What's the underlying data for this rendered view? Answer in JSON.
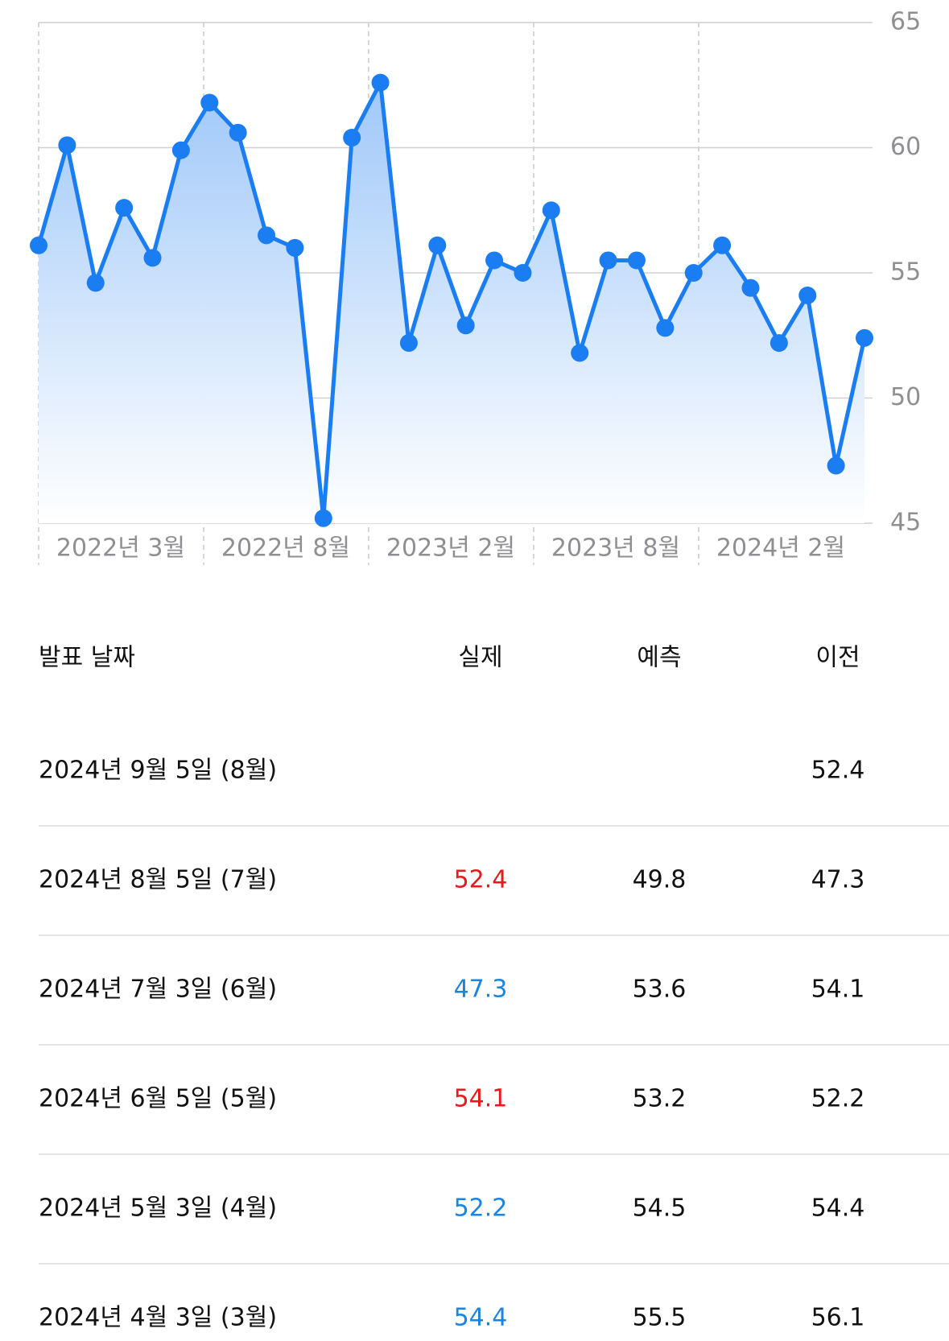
{
  "chart_data": {
    "type": "line",
    "x_tick_labels": [
      "2022년 3월",
      "2022년 8월",
      "2023년 2월",
      "2023년 8월",
      "2024년 2월"
    ],
    "series": [
      {
        "color": "#1a7df2",
        "values": [
          56.1,
          60.1,
          54.6,
          57.6,
          55.6,
          59.9,
          61.8,
          60.6,
          56.5,
          56.0,
          45.2,
          60.4,
          62.6,
          52.2,
          56.1,
          52.9,
          55.5,
          55.0,
          57.5,
          51.8,
          55.5,
          55.5,
          52.8,
          55.0,
          56.1,
          54.4,
          52.2,
          54.1,
          47.3,
          52.4
        ]
      }
    ],
    "ylim": [
      45,
      65
    ],
    "yticks": [
      45,
      50,
      55,
      60,
      65
    ],
    "grid": true
  },
  "table": {
    "header": [
      "발표 날짜",
      "실제",
      "예측",
      "이전"
    ],
    "up_color": "#e8191c",
    "down_color": "#1a84e0",
    "rows": [
      [
        "2024년 9월 5일 (8월)",
        null,
        null,
        52.4
      ],
      [
        "2024년 8월 5일 (7월)",
        52.4,
        49.8,
        47.3
      ],
      [
        "2024년 7월 3일 (6월)",
        47.3,
        53.6,
        54.1
      ],
      [
        "2024년 6월 5일 (5월)",
        54.1,
        53.2,
        52.2
      ],
      [
        "2024년 5월 3일 (4월)",
        52.2,
        54.5,
        54.4
      ],
      [
        "2024년 4월 3일 (3월)",
        54.4,
        55.5,
        56.1
      ]
    ]
  }
}
